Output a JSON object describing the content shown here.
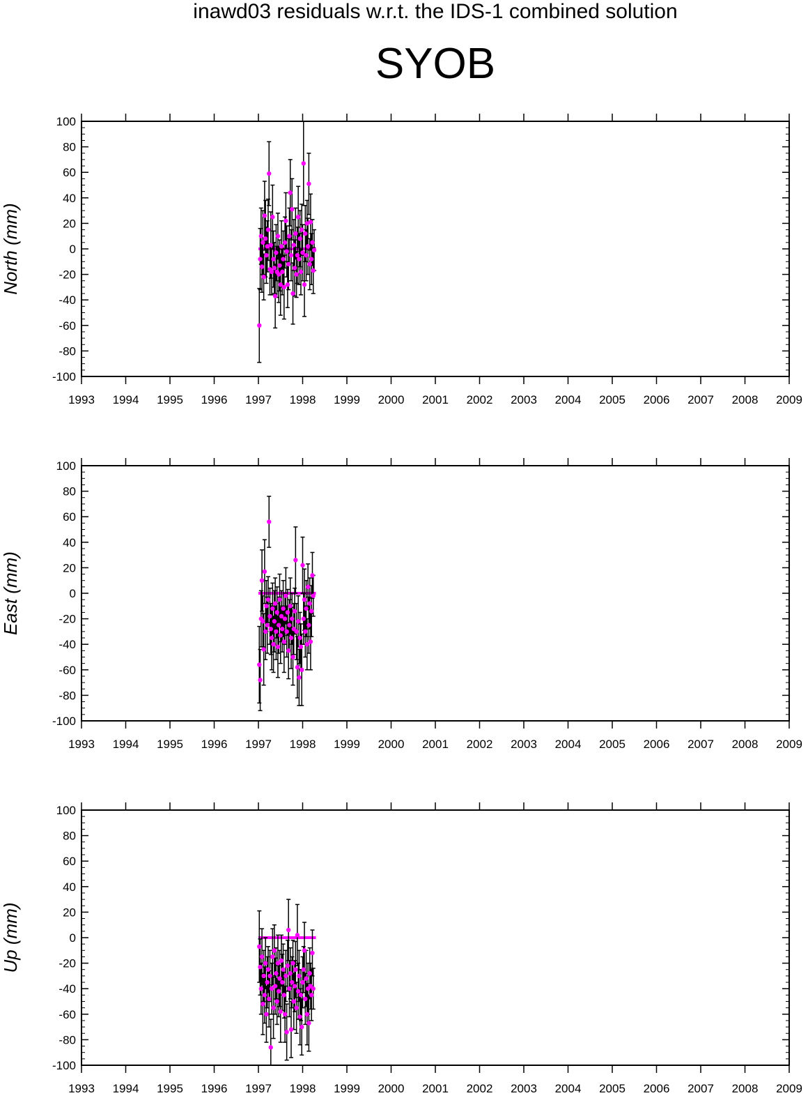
{
  "header": {
    "title": "inawd03 residuals w.r.t. the IDS-1 combined solution",
    "station": "SYOB"
  },
  "colors": {
    "point": "#ff00ff",
    "errorbar": "#000000",
    "zero_line": "#ff00ff"
  },
  "chart_data": [
    {
      "type": "scatter",
      "name": "north-panel",
      "ylabel": "North (mm)",
      "xlim": [
        1993,
        2009
      ],
      "ylim": [
        -100,
        100
      ],
      "x_ticks": [
        "1993",
        "1994",
        "1995",
        "1996",
        "1997",
        "1998",
        "1999",
        "2000",
        "2001",
        "2002",
        "2003",
        "2004",
        "2005",
        "2006",
        "2007",
        "2008",
        "2009"
      ],
      "y_ticks": [
        "100",
        "80",
        "60",
        "40",
        "20",
        "0",
        "-20",
        "-40",
        "-60",
        "-80",
        "-100"
      ],
      "zero_line": {
        "x_start": 1997.0,
        "x_end": 1998.3,
        "y": 0
      },
      "points": [
        {
          "x": 1997.02,
          "y": -60,
          "err": 29
        },
        {
          "x": 1997.04,
          "y": -8,
          "err": 24
        },
        {
          "x": 1997.06,
          "y": 10,
          "err": 22
        },
        {
          "x": 1997.08,
          "y": -14,
          "err": 20
        },
        {
          "x": 1997.1,
          "y": 5,
          "err": 25
        },
        {
          "x": 1997.12,
          "y": -22,
          "err": 18
        },
        {
          "x": 1997.14,
          "y": 26,
          "err": 27
        },
        {
          "x": 1997.16,
          "y": 8,
          "err": 30
        },
        {
          "x": 1997.18,
          "y": -5,
          "err": 22
        },
        {
          "x": 1997.2,
          "y": 2,
          "err": 20
        },
        {
          "x": 1997.22,
          "y": 15,
          "err": 24
        },
        {
          "x": 1997.24,
          "y": 59,
          "err": 25
        },
        {
          "x": 1997.26,
          "y": -16,
          "err": 20
        },
        {
          "x": 1997.28,
          "y": 3,
          "err": 26
        },
        {
          "x": 1997.3,
          "y": -18,
          "err": 18
        },
        {
          "x": 1997.32,
          "y": 25,
          "err": 25
        },
        {
          "x": 1997.34,
          "y": -8,
          "err": 22
        },
        {
          "x": 1997.36,
          "y": -15,
          "err": 20
        },
        {
          "x": 1997.38,
          "y": -37,
          "err": 25
        },
        {
          "x": 1997.4,
          "y": -3,
          "err": 22
        },
        {
          "x": 1997.42,
          "y": -18,
          "err": 20
        },
        {
          "x": 1997.44,
          "y": 10,
          "err": 18
        },
        {
          "x": 1997.46,
          "y": -20,
          "err": 22
        },
        {
          "x": 1997.48,
          "y": -13,
          "err": 20
        },
        {
          "x": 1997.5,
          "y": -28,
          "err": 24
        },
        {
          "x": 1997.52,
          "y": 2,
          "err": 20
        },
        {
          "x": 1997.54,
          "y": -18,
          "err": 18
        },
        {
          "x": 1997.56,
          "y": -8,
          "err": 22
        },
        {
          "x": 1997.58,
          "y": -30,
          "err": 25
        },
        {
          "x": 1997.6,
          "y": 5,
          "err": 20
        },
        {
          "x": 1997.62,
          "y": 22,
          "err": 22
        },
        {
          "x": 1997.64,
          "y": -2,
          "err": 20
        },
        {
          "x": 1997.66,
          "y": -28,
          "err": 18
        },
        {
          "x": 1997.68,
          "y": -12,
          "err": 20
        },
        {
          "x": 1997.7,
          "y": 10,
          "err": 22
        },
        {
          "x": 1997.72,
          "y": 44,
          "err": 26
        },
        {
          "x": 1997.74,
          "y": -5,
          "err": 20
        },
        {
          "x": 1997.76,
          "y": 31,
          "err": 24
        },
        {
          "x": 1997.78,
          "y": -35,
          "err": 24
        },
        {
          "x": 1997.8,
          "y": 3,
          "err": 20
        },
        {
          "x": 1997.82,
          "y": -15,
          "err": 22
        },
        {
          "x": 1997.84,
          "y": 12,
          "err": 20
        },
        {
          "x": 1997.86,
          "y": -20,
          "err": 18
        },
        {
          "x": 1997.88,
          "y": -5,
          "err": 22
        },
        {
          "x": 1997.9,
          "y": 25,
          "err": 24
        },
        {
          "x": 1997.92,
          "y": -8,
          "err": 20
        },
        {
          "x": 1997.94,
          "y": 8,
          "err": 22
        },
        {
          "x": 1997.96,
          "y": -18,
          "err": 18
        },
        {
          "x": 1997.98,
          "y": 15,
          "err": 20
        },
        {
          "x": 1998.0,
          "y": -3,
          "err": 22
        },
        {
          "x": 1998.02,
          "y": 67,
          "err": 33
        },
        {
          "x": 1998.04,
          "y": -28,
          "err": 25
        },
        {
          "x": 1998.06,
          "y": 12,
          "err": 22
        },
        {
          "x": 1998.08,
          "y": -5,
          "err": 20
        },
        {
          "x": 1998.1,
          "y": 20,
          "err": 18
        },
        {
          "x": 1998.12,
          "y": 2,
          "err": 22
        },
        {
          "x": 1998.14,
          "y": 51,
          "err": 24
        },
        {
          "x": 1998.16,
          "y": -12,
          "err": 20
        },
        {
          "x": 1998.18,
          "y": 21,
          "err": 22
        },
        {
          "x": 1998.2,
          "y": -8,
          "err": 20
        },
        {
          "x": 1998.22,
          "y": 5,
          "err": 18
        },
        {
          "x": 1998.24,
          "y": -17,
          "err": 18
        },
        {
          "x": 1998.26,
          "y": -1,
          "err": 16
        }
      ]
    },
    {
      "type": "scatter",
      "name": "east-panel",
      "ylabel": "East (mm)",
      "xlim": [
        1993,
        2009
      ],
      "ylim": [
        -100,
        100
      ],
      "x_ticks": [
        "1993",
        "1994",
        "1995",
        "1996",
        "1997",
        "1998",
        "1999",
        "2000",
        "2001",
        "2002",
        "2003",
        "2004",
        "2005",
        "2006",
        "2007",
        "2008",
        "2009"
      ],
      "y_ticks": [
        "100",
        "80",
        "60",
        "40",
        "20",
        "0",
        "-20",
        "-40",
        "-60",
        "-80",
        "-100"
      ],
      "zero_line": {
        "x_start": 1997.0,
        "x_end": 1998.3,
        "y": 0
      },
      "points": [
        {
          "x": 1997.02,
          "y": -56,
          "err": 30
        },
        {
          "x": 1997.04,
          "y": -68,
          "err": 24
        },
        {
          "x": 1997.06,
          "y": -20,
          "err": 22
        },
        {
          "x": 1997.08,
          "y": 10,
          "err": 24
        },
        {
          "x": 1997.1,
          "y": -22,
          "err": 20
        },
        {
          "x": 1997.12,
          "y": -44,
          "err": 28
        },
        {
          "x": 1997.14,
          "y": 17,
          "err": 25
        },
        {
          "x": 1997.16,
          "y": -30,
          "err": 22
        },
        {
          "x": 1997.18,
          "y": -10,
          "err": 20
        },
        {
          "x": 1997.2,
          "y": -25,
          "err": 22
        },
        {
          "x": 1997.22,
          "y": -5,
          "err": 18
        },
        {
          "x": 1997.24,
          "y": 56,
          "err": 20
        },
        {
          "x": 1997.26,
          "y": -18,
          "err": 22
        },
        {
          "x": 1997.28,
          "y": -28,
          "err": 20
        },
        {
          "x": 1997.3,
          "y": -35,
          "err": 25
        },
        {
          "x": 1997.32,
          "y": -12,
          "err": 20
        },
        {
          "x": 1997.34,
          "y": -40,
          "err": 22
        },
        {
          "x": 1997.36,
          "y": -22,
          "err": 24
        },
        {
          "x": 1997.38,
          "y": -8,
          "err": 20
        },
        {
          "x": 1997.4,
          "y": -30,
          "err": 22
        },
        {
          "x": 1997.42,
          "y": -15,
          "err": 20
        },
        {
          "x": 1997.44,
          "y": -42,
          "err": 24
        },
        {
          "x": 1997.46,
          "y": -25,
          "err": 22
        },
        {
          "x": 1997.48,
          "y": -5,
          "err": 20
        },
        {
          "x": 1997.5,
          "y": -33,
          "err": 22
        },
        {
          "x": 1997.52,
          "y": -18,
          "err": 20
        },
        {
          "x": 1997.54,
          "y": -28,
          "err": 18
        },
        {
          "x": 1997.56,
          "y": -12,
          "err": 22
        },
        {
          "x": 1997.58,
          "y": -38,
          "err": 24
        },
        {
          "x": 1997.6,
          "y": -20,
          "err": 20
        },
        {
          "x": 1997.62,
          "y": -2,
          "err": 22
        },
        {
          "x": 1997.64,
          "y": -30,
          "err": 20
        },
        {
          "x": 1997.66,
          "y": -15,
          "err": 18
        },
        {
          "x": 1997.68,
          "y": -45,
          "err": 22
        },
        {
          "x": 1997.7,
          "y": -25,
          "err": 20
        },
        {
          "x": 1997.72,
          "y": -10,
          "err": 22
        },
        {
          "x": 1997.74,
          "y": -35,
          "err": 24
        },
        {
          "x": 1997.76,
          "y": -20,
          "err": 20
        },
        {
          "x": 1997.78,
          "y": -50,
          "err": 22
        },
        {
          "x": 1997.8,
          "y": -28,
          "err": 20
        },
        {
          "x": 1997.82,
          "y": -14,
          "err": 18
        },
        {
          "x": 1997.84,
          "y": 26,
          "err": 26
        },
        {
          "x": 1997.86,
          "y": -30,
          "err": 22
        },
        {
          "x": 1997.88,
          "y": -58,
          "err": 24
        },
        {
          "x": 1997.9,
          "y": -22,
          "err": 20
        },
        {
          "x": 1997.92,
          "y": -66,
          "err": 22
        },
        {
          "x": 1997.94,
          "y": -35,
          "err": 20
        },
        {
          "x": 1997.96,
          "y": -42,
          "err": 18
        },
        {
          "x": 1997.98,
          "y": -60,
          "err": 28
        },
        {
          "x": 1998.0,
          "y": 22,
          "err": 22
        },
        {
          "x": 1998.02,
          "y": -20,
          "err": 20
        },
        {
          "x": 1998.04,
          "y": -5,
          "err": 24
        },
        {
          "x": 1998.06,
          "y": -30,
          "err": 20
        },
        {
          "x": 1998.08,
          "y": -12,
          "err": 22
        },
        {
          "x": 1998.1,
          "y": -40,
          "err": 20
        },
        {
          "x": 1998.12,
          "y": 5,
          "err": 18
        },
        {
          "x": 1998.14,
          "y": -25,
          "err": 22
        },
        {
          "x": 1998.16,
          "y": -8,
          "err": 20
        },
        {
          "x": 1998.18,
          "y": -38,
          "err": 22
        },
        {
          "x": 1998.2,
          "y": -14,
          "err": 20
        },
        {
          "x": 1998.22,
          "y": 14,
          "err": 18
        },
        {
          "x": 1998.24,
          "y": -2,
          "err": 16
        }
      ]
    },
    {
      "type": "scatter",
      "name": "up-panel",
      "ylabel": "Up (mm)",
      "xlim": [
        1993,
        2009
      ],
      "ylim": [
        -100,
        100
      ],
      "x_ticks": [
        "1993",
        "1994",
        "1995",
        "1996",
        "1997",
        "1998",
        "1999",
        "2000",
        "2001",
        "2002",
        "2003",
        "2004",
        "2005",
        "2006",
        "2007",
        "2008",
        "2009"
      ],
      "y_ticks": [
        "100",
        "80",
        "60",
        "40",
        "20",
        "0",
        "-20",
        "-40",
        "-60",
        "-80",
        "-100"
      ],
      "zero_line": {
        "x_start": 1997.0,
        "x_end": 1998.3,
        "y": 0
      },
      "points": [
        {
          "x": 1997.02,
          "y": -7,
          "err": 28
        },
        {
          "x": 1997.04,
          "y": -23,
          "err": 22
        },
        {
          "x": 1997.06,
          "y": -40,
          "err": 20
        },
        {
          "x": 1997.08,
          "y": -15,
          "err": 22
        },
        {
          "x": 1997.1,
          "y": -52,
          "err": 24
        },
        {
          "x": 1997.12,
          "y": -30,
          "err": 20
        },
        {
          "x": 1997.14,
          "y": -45,
          "err": 22
        },
        {
          "x": 1997.16,
          "y": -20,
          "err": 20
        },
        {
          "x": 1997.18,
          "y": -60,
          "err": 22
        },
        {
          "x": 1997.2,
          "y": -35,
          "err": 20
        },
        {
          "x": 1997.22,
          "y": -25,
          "err": 18
        },
        {
          "x": 1997.24,
          "y": -48,
          "err": 22
        },
        {
          "x": 1997.26,
          "y": -30,
          "err": 20
        },
        {
          "x": 1997.28,
          "y": -86,
          "err": 22
        },
        {
          "x": 1997.3,
          "y": -40,
          "err": 20
        },
        {
          "x": 1997.32,
          "y": -15,
          "err": 22
        },
        {
          "x": 1997.34,
          "y": -55,
          "err": 24
        },
        {
          "x": 1997.36,
          "y": -10,
          "err": 20
        },
        {
          "x": 1997.38,
          "y": -38,
          "err": 22
        },
        {
          "x": 1997.4,
          "y": -28,
          "err": 20
        },
        {
          "x": 1997.42,
          "y": -50,
          "err": 18
        },
        {
          "x": 1997.44,
          "y": -20,
          "err": 22
        },
        {
          "x": 1997.46,
          "y": -42,
          "err": 20
        },
        {
          "x": 1997.48,
          "y": -32,
          "err": 22
        },
        {
          "x": 1997.5,
          "y": -58,
          "err": 24
        },
        {
          "x": 1997.52,
          "y": -18,
          "err": 20
        },
        {
          "x": 1997.54,
          "y": -35,
          "err": 22
        },
        {
          "x": 1997.56,
          "y": -25,
          "err": 20
        },
        {
          "x": 1997.58,
          "y": -45,
          "err": 18
        },
        {
          "x": 1997.6,
          "y": -60,
          "err": 22
        },
        {
          "x": 1997.62,
          "y": -30,
          "err": 20
        },
        {
          "x": 1997.64,
          "y": -74,
          "err": 22
        },
        {
          "x": 1997.66,
          "y": -22,
          "err": 20
        },
        {
          "x": 1997.68,
          "y": 6,
          "err": 24
        },
        {
          "x": 1997.7,
          "y": -40,
          "err": 22
        },
        {
          "x": 1997.72,
          "y": -28,
          "err": 20
        },
        {
          "x": 1997.74,
          "y": -72,
          "err": 22
        },
        {
          "x": 1997.76,
          "y": -35,
          "err": 20
        },
        {
          "x": 1997.78,
          "y": -20,
          "err": 18
        },
        {
          "x": 1997.8,
          "y": -50,
          "err": 22
        },
        {
          "x": 1997.82,
          "y": -38,
          "err": 20
        },
        {
          "x": 1997.84,
          "y": -25,
          "err": 22
        },
        {
          "x": 1997.86,
          "y": -55,
          "err": 20
        },
        {
          "x": 1997.88,
          "y": 2,
          "err": 24
        },
        {
          "x": 1997.9,
          "y": -42,
          "err": 22
        },
        {
          "x": 1997.92,
          "y": -30,
          "err": 20
        },
        {
          "x": 1997.94,
          "y": -62,
          "err": 22
        },
        {
          "x": 1997.96,
          "y": -45,
          "err": 20
        },
        {
          "x": 1997.98,
          "y": -70,
          "err": 22
        },
        {
          "x": 1998.0,
          "y": -35,
          "err": 20
        },
        {
          "x": 1998.02,
          "y": -25,
          "err": 18
        },
        {
          "x": 1998.04,
          "y": -10,
          "err": 22
        },
        {
          "x": 1998.06,
          "y": -48,
          "err": 20
        },
        {
          "x": 1998.08,
          "y": -32,
          "err": 22
        },
        {
          "x": 1998.1,
          "y": -60,
          "err": 24
        },
        {
          "x": 1998.12,
          "y": -40,
          "err": 20
        },
        {
          "x": 1998.14,
          "y": -67,
          "err": 22
        },
        {
          "x": 1998.16,
          "y": -28,
          "err": 20
        },
        {
          "x": 1998.18,
          "y": -38,
          "err": 18
        },
        {
          "x": 1998.2,
          "y": -45,
          "err": 20
        },
        {
          "x": 1998.22,
          "y": -12,
          "err": 18
        },
        {
          "x": 1998.24,
          "y": -40,
          "err": 16
        }
      ]
    }
  ]
}
